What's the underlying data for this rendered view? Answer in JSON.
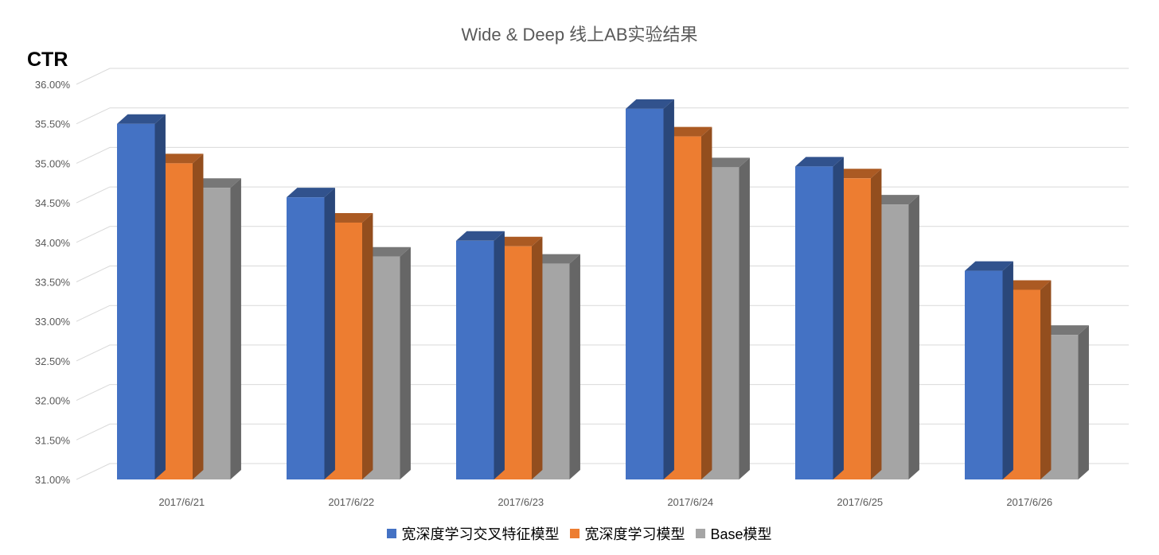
{
  "chart_data": {
    "type": "bar",
    "title": "Wide & Deep 线上AB实验结果",
    "ylabel": "CTR",
    "xlabel": "",
    "categories": [
      "2017/6/21",
      "2017/6/22",
      "2017/6/23",
      "2017/6/24",
      "2017/6/25",
      "2017/6/26"
    ],
    "series": [
      {
        "name": "宽深度学习交叉特征模型",
        "color": "#4472C4",
        "values": [
          35.5,
          34.57,
          34.02,
          35.69,
          34.96,
          33.64
        ]
      },
      {
        "name": "宽深度学习模型",
        "color": "#ED7D31",
        "values": [
          35.0,
          34.25,
          33.95,
          35.34,
          34.81,
          33.4
        ]
      },
      {
        "name": "Base模型",
        "color": "#A5A5A5",
        "values": [
          34.69,
          33.82,
          33.73,
          34.95,
          34.48,
          32.83
        ]
      }
    ],
    "ylim": [
      31.0,
      36.0
    ],
    "yticks": [
      "31.00%",
      "31.50%",
      "32.00%",
      "32.50%",
      "33.00%",
      "33.50%",
      "34.00%",
      "34.50%",
      "35.00%",
      "35.50%",
      "36.00%"
    ],
    "grid": true,
    "legend_position": "bottom",
    "style": "3d-clustered-column"
  }
}
